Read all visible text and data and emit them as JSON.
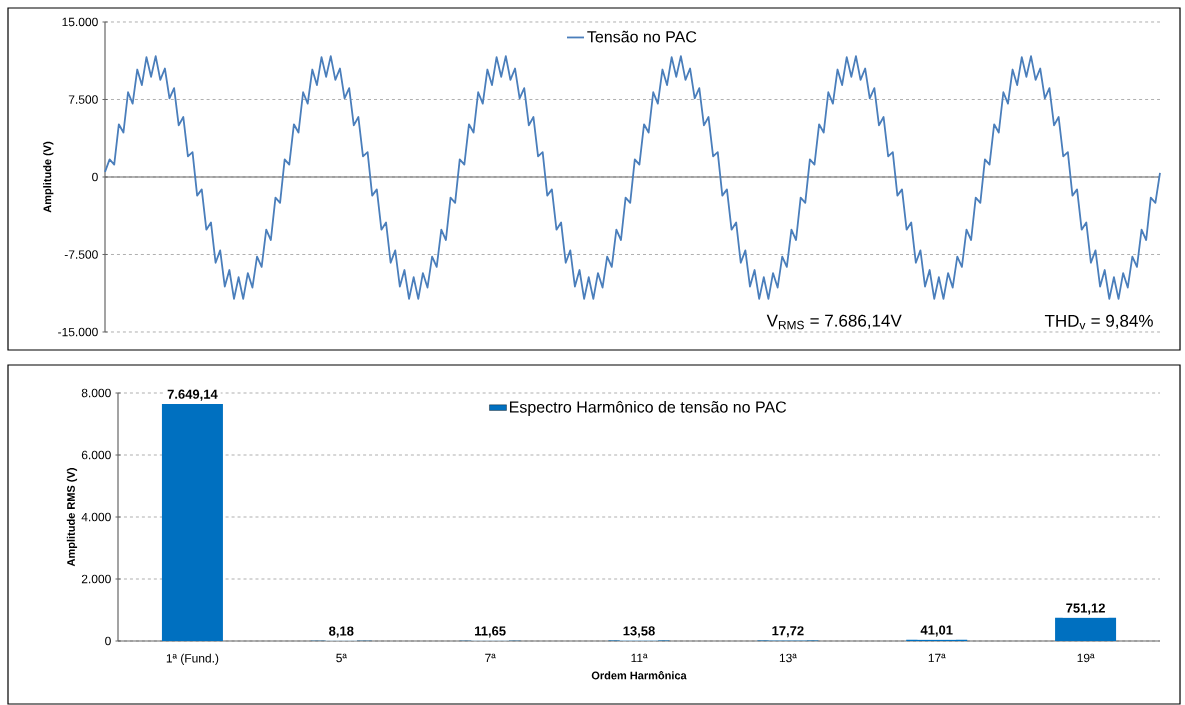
{
  "chart_data": [
    {
      "type": "line",
      "ylabel": "Amplitude (V)",
      "ylim": [
        -15000,
        15000
      ],
      "yticks": [
        {
          "value": -15000,
          "label": "-15.000"
        },
        {
          "value": -7500,
          "label": "-7.500"
        },
        0,
        {
          "value": 7500,
          "label": "7.500"
        },
        {
          "value": 15000,
          "label": "15.000"
        }
      ],
      "grid": "y",
      "legend": "top",
      "annotations": [
        "V$_{RMS}$ = 7.686,14V",
        "THD$_{v}$ = 9,84%"
      ],
      "categories": [
        null,
        null,
        null,
        null,
        null,
        null,
        null,
        null,
        null,
        null,
        null,
        null,
        null,
        null,
        null,
        null,
        null,
        null,
        null,
        null,
        null,
        null,
        null,
        null,
        null,
        null,
        null,
        null,
        null,
        null,
        null,
        null,
        null,
        null,
        null,
        null,
        null,
        null,
        null,
        null,
        null,
        null,
        null,
        null,
        null,
        null,
        null,
        null,
        null,
        null,
        null,
        null,
        null,
        null,
        null,
        null,
        null,
        null,
        null,
        null,
        null,
        null,
        null,
        null,
        null,
        null,
        null,
        null,
        null,
        null,
        null,
        null,
        null,
        null,
        null,
        null,
        null,
        null,
        null,
        null,
        null,
        null,
        null,
        null,
        null,
        null,
        null,
        null,
        null,
        null,
        null,
        null,
        null,
        null,
        null,
        null,
        null,
        null,
        null,
        null,
        null,
        null,
        null,
        null,
        null,
        null,
        null,
        null,
        null,
        null,
        null,
        null,
        null,
        null,
        null,
        null,
        null,
        null,
        null,
        null,
        null,
        null,
        null,
        null,
        null,
        null,
        null,
        null,
        null,
        null,
        null,
        null,
        null,
        null,
        null,
        null,
        null,
        null,
        null,
        null,
        null,
        null,
        null,
        null,
        null,
        null,
        null,
        null,
        null,
        null,
        null,
        null,
        null,
        null,
        null,
        null,
        null,
        null,
        null,
        null,
        null,
        null,
        null,
        null,
        null,
        null,
        null,
        null,
        null,
        null,
        null,
        null,
        null,
        null,
        null,
        null,
        null,
        null,
        null,
        null,
        null,
        null,
        null,
        null,
        null,
        null,
        null,
        null,
        null,
        null,
        null,
        null,
        null,
        null,
        null,
        null,
        null,
        null,
        null,
        null,
        null,
        null,
        null,
        null,
        null,
        null,
        null,
        null,
        null,
        null,
        null,
        null,
        null,
        null,
        null,
        null,
        null,
        null,
        null,
        null,
        null,
        null,
        null,
        null,
        null,
        null,
        null,
        null,
        null,
        null
      ],
      "series": [
        {
          "name": "Tensão no PAC",
          "color": "#4a7ebb",
          "values": [
            500,
            1700,
            1200,
            5100,
            4300,
            8200,
            7100,
            10400,
            8900,
            11600,
            9700,
            11700,
            9400,
            10500,
            7600,
            8600,
            5000,
            5800,
            2000,
            2400,
            -1800,
            -1200,
            -5100,
            -4400,
            -8300,
            -7100,
            -10600,
            -9000,
            -11800,
            -9700,
            -11800,
            -9300,
            -10700,
            -7700,
            -8700,
            -5100,
            -6100,
            -2000,
            -2500,
            1700,
            1200,
            5100,
            4300,
            8200,
            7100,
            10400,
            8900,
            11600,
            9700,
            11700,
            9400,
            10500,
            7600,
            8600,
            5000,
            5800,
            2000,
            2400,
            -1800,
            -1200,
            -5100,
            -4400,
            -8300,
            -7100,
            -10600,
            -9000,
            -11800,
            -9700,
            -11800,
            -9300,
            -10700,
            -7700,
            -8700,
            -5100,
            -6100,
            -2000,
            -2500,
            1700,
            1200,
            5100,
            4300,
            8200,
            7100,
            10400,
            8900,
            11600,
            9700,
            11700,
            9400,
            10500,
            7600,
            8600,
            5000,
            5800,
            2000,
            2400,
            -1800,
            -1200,
            -5100,
            -4400,
            -8300,
            -7100,
            -10600,
            -9000,
            -11800,
            -9700,
            -11800,
            -9300,
            -10700,
            -7700,
            -8700,
            -5100,
            -6100,
            -2000,
            -2500,
            1700,
            1200,
            5100,
            4300,
            8200,
            7100,
            10400,
            8900,
            11600,
            9700,
            11700,
            9400,
            10500,
            7600,
            8600,
            5000,
            5800,
            2000,
            2400,
            -1800,
            -1200,
            -5100,
            -4400,
            -8300,
            -7100,
            -10600,
            -9000,
            -11800,
            -9700,
            -11800,
            -9300,
            -10700,
            -7700,
            -8700,
            -5100,
            -6100,
            -2000,
            -2500,
            1700,
            1200,
            5100,
            4300,
            8200,
            7100,
            10400,
            8900,
            11600,
            9700,
            11700,
            9400,
            10500,
            7600,
            8600,
            5000,
            5800,
            2000,
            2400,
            -1800,
            -1200,
            -5100,
            -4400,
            -8300,
            -7100,
            -10600,
            -9000,
            -11800,
            -9700,
            -11800,
            -9300,
            -10700,
            -7700,
            -8700,
            -5100,
            -6100,
            -2000,
            -2500,
            1700,
            1200,
            5100,
            4300,
            8200,
            7100,
            10400,
            8900,
            11600,
            9700,
            11700,
            9400,
            10500,
            7600,
            8600,
            5000,
            5800,
            2000,
            2400,
            -1800,
            -1200,
            -5100,
            -4400,
            -8300,
            -7100,
            -10600,
            -9000,
            -11800,
            -9700,
            -11800,
            -9300,
            -10700,
            -7700,
            -8700,
            -5100,
            -6100,
            -2000,
            -2500,
            400
          ]
        }
      ]
    },
    {
      "type": "bar",
      "xlabel": "Ordem Harmônica",
      "ylabel": "Amplitude  RMS (V)",
      "ylim": [
        0,
        8000
      ],
      "yticks": [
        0,
        {
          "value": 2000,
          "label": "2.000"
        },
        {
          "value": 4000,
          "label": "4.000"
        },
        {
          "value": 6000,
          "label": "6.000"
        },
        {
          "value": 8000,
          "label": "8.000"
        }
      ],
      "grid": "y",
      "legend": "top",
      "categories": [
        "1ª (Fund.)",
        "5ª",
        "7ª",
        "11ª",
        "13ª",
        "17ª",
        "19ª"
      ],
      "series": [
        {
          "name": "Espectro Harmônico  de tensão no PAC",
          "color": "#0070c0",
          "values": [
            7649.14,
            8.18,
            11.65,
            13.58,
            17.72,
            41.01,
            751.12
          ],
          "value_labels": [
            "7.649,14",
            "8,18",
            "11,65",
            "13,58",
            "17,72",
            "41,01",
            "751,12"
          ]
        }
      ]
    }
  ]
}
